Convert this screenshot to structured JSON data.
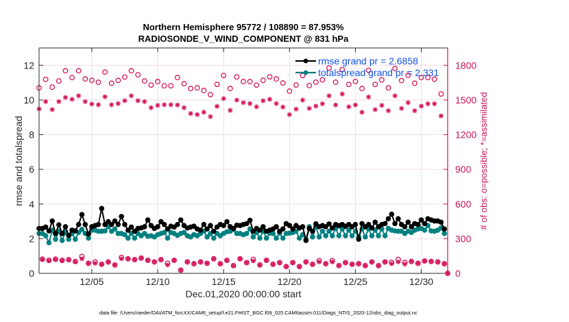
{
  "chart_data": {
    "type": "line",
    "title": [
      "Northern Hemisphere 95772 / 108890 = 87.953%",
      "RADIOSONDE_V_WIND_COMPONENT @ 831 hPa"
    ],
    "xlabel": "Dec.01,2020 00:00:00 start",
    "ylabel_left": "rmse and totalspread",
    "ylabel_right": "# of obs: o=possible; *=assimilated",
    "footer": "data file: /Users/raeder/DAI/ATM_forcXX/CAM6_setup/f.e21.FHIST_BGC.f09_025.CAM6assim.011/Diags_NTrS_2020-12/obs_diag_output.nc",
    "x_units": "days since 2020-12-01 00:00:00",
    "xlim": [
      0,
      31
    ],
    "xtick_days": [
      4,
      9,
      14,
      19,
      24,
      29
    ],
    "xtick_labels": [
      "12/05",
      "12/10",
      "12/15",
      "12/20",
      "12/25",
      "12/30"
    ],
    "ylim_left": [
      0,
      13
    ],
    "yticks_left": [
      0,
      2,
      4,
      6,
      8,
      10,
      12
    ],
    "ylim_right": [
      0,
      1950
    ],
    "yticks_right": [
      0,
      300,
      600,
      900,
      1200,
      1500,
      1800
    ],
    "grid": true,
    "legend": {
      "placement": "top-right",
      "entries": [
        {
          "series": "rmse",
          "label": "rmse grand pr = 2.6858"
        },
        {
          "series": "totalspread",
          "label": "totalspread grand pr = 2.331"
        }
      ]
    },
    "colors": {
      "rmse": "#000000",
      "totalspread": "#008080",
      "obs": "#d4145a",
      "legend_text": "#1250e6",
      "right_axis": "#c8105a"
    },
    "series": [
      {
        "name": "rmse",
        "axis": "left",
        "x_start_day": 0,
        "x_step_days": 0.25,
        "values": [
          2.59,
          2.59,
          2.67,
          2.45,
          3.02,
          2.3,
          2.8,
          2.3,
          2.69,
          2.19,
          2.49,
          2.45,
          2.82,
          3.39,
          2.82,
          2.27,
          2.69,
          2.76,
          2.82,
          3.74,
          2.82,
          2.98,
          2.82,
          3.02,
          2.82,
          3.28,
          2.82,
          2.49,
          2.67,
          2.43,
          2.59,
          2.62,
          2.69,
          3.08,
          2.76,
          2.59,
          2.69,
          2.98,
          2.82,
          2.56,
          2.72,
          2.67,
          2.82,
          3.08,
          2.76,
          2.62,
          2.67,
          2.72,
          2.56,
          2.49,
          2.82,
          2.56,
          2.76,
          2.43,
          2.67,
          2.82,
          2.76,
          2.98,
          2.69,
          2.59,
          2.78,
          2.76,
          2.82,
          2.87,
          3.06,
          2.43,
          2.59,
          2.49,
          2.69,
          2.43,
          2.49,
          2.56,
          2.69,
          2.43,
          2.56,
          2.87,
          2.76,
          2.56,
          2.76,
          2.62,
          2.69,
          1.9,
          2.59,
          2.43,
          2.86,
          2.69,
          2.76,
          2.69,
          2.85,
          2.62,
          2.82,
          2.76,
          2.82,
          2.72,
          2.82,
          2.69,
          2.82,
          1.97,
          2.87,
          2.69,
          2.82,
          2.62,
          2.95,
          2.69,
          2.82,
          2.87,
          3.15,
          3.41,
          2.87,
          3.15,
          2.82,
          2.69,
          2.95,
          2.69,
          2.87,
          2.82,
          3.08,
          2.87,
          3.15,
          3.08,
          3.02,
          3.02,
          2.95,
          2.56
        ]
      },
      {
        "name": "totalspread",
        "axis": "left",
        "x_start_day": 0,
        "x_step_days": 0.25,
        "values": [
          2.3,
          2.3,
          2.17,
          1.77,
          2.49,
          1.97,
          2.43,
          1.9,
          2.36,
          1.97,
          2.3,
          1.97,
          2.36,
          2.53,
          2.3,
          2.03,
          2.49,
          2.49,
          2.43,
          2.43,
          2.45,
          2.69,
          2.43,
          2.56,
          2.3,
          2.3,
          2.23,
          2.03,
          2.3,
          2.03,
          2.3,
          2.17,
          2.3,
          2.14,
          2.17,
          2.1,
          2.23,
          2.3,
          2.36,
          2.03,
          2.36,
          2.3,
          2.19,
          2.3,
          2.36,
          2.17,
          2.1,
          2.23,
          2.17,
          2.3,
          2.43,
          2.1,
          2.3,
          2.03,
          2.3,
          2.17,
          2.3,
          2.4,
          2.43,
          2.53,
          2.3,
          2.3,
          2.23,
          2.3,
          2.56,
          2.1,
          2.36,
          2.03,
          2.43,
          2.03,
          2.32,
          2.3,
          2.03,
          2.32,
          2.03,
          2.3,
          2.32,
          2.36,
          2.43,
          2.03,
          2.23,
          1.97,
          2.69,
          2.1,
          2.69,
          2.1,
          2.43,
          2.17,
          2.43,
          2.17,
          2.59,
          2.17,
          2.56,
          2.17,
          2.49,
          2.17,
          2.43,
          2.1,
          2.56,
          2.1,
          2.56,
          2.17,
          2.49,
          2.17,
          2.56,
          2.17,
          2.59,
          2.49,
          2.45,
          2.43,
          2.43,
          2.3,
          2.43,
          2.36,
          2.49,
          2.56,
          2.59,
          2.49,
          2.76,
          2.45,
          2.43,
          2.49,
          2.62,
          2.3
        ]
      },
      {
        "name": "obs_possible",
        "axis": "right",
        "marker": "o",
        "x_start_day": 0,
        "x_step_days": 0.25,
        "values": [
          1605,
          123,
          1678,
          113,
          1611,
          123,
          1664,
          113,
          1753,
          119,
          1694,
          103,
          1753,
          146,
          1682,
          87,
          1670,
          99,
          1653,
          79,
          1741,
          99,
          1645,
          73,
          1670,
          138,
          1698,
          126,
          1753,
          119,
          1718,
          132,
          1664,
          113,
          1629,
          99,
          1659,
          119,
          1623,
          87,
          1623,
          113,
          1694,
          28,
          1641,
          99,
          1599,
          83,
          1605,
          99,
          1582,
          87,
          1546,
          126,
          1635,
          83,
          1712,
          113,
          1599,
          67,
          1700,
          126,
          1659,
          93,
          1659,
          121,
          1629,
          73,
          1670,
          113,
          1700,
          79,
          1682,
          93,
          1647,
          59,
          1576,
          93,
          1629,
          59,
          1712,
          99,
          1625,
          79,
          1654,
          110,
          1674,
          83,
          1777,
          110,
          1654,
          67,
          1763,
          93,
          1635,
          79,
          1660,
          83,
          1599,
          67,
          1757,
          99,
          1635,
          67,
          1674,
          99,
          1605,
          95,
          1773,
          121,
          1668,
          95,
          1714,
          103,
          1645,
          87,
          1694,
          107,
          1694,
          103,
          1680,
          99,
          1552,
          83,
          0
        ]
      },
      {
        "name": "obs_assimilated",
        "axis": "right",
        "marker": "*",
        "x_start_day": 0,
        "x_step_days": 0.25,
        "values": [
          1423,
          120,
          1486,
          110,
          1417,
          120,
          1486,
          110,
          1522,
          116,
          1506,
          100,
          1536,
          126,
          1486,
          87,
          1465,
          87,
          1459,
          79,
          1528,
          99,
          1459,
          73,
          1469,
          126,
          1494,
          126,
          1536,
          119,
          1494,
          132,
          1486,
          113,
          1433,
          99,
          1453,
          119,
          1459,
          73,
          1459,
          113,
          1457,
          28,
          1433,
          99,
          1383,
          83,
          1374,
          99,
          1394,
          87,
          1356,
          126,
          1445,
          83,
          1512,
          113,
          1410,
          67,
          1499,
          126,
          1477,
          93,
          1469,
          107,
          1441,
          73,
          1493,
          113,
          1506,
          79,
          1469,
          93,
          1439,
          59,
          1374,
          93,
          1421,
          59,
          1499,
          99,
          1427,
          79,
          1447,
          99,
          1467,
          83,
          1536,
          99,
          1457,
          67,
          1552,
          93,
          1441,
          79,
          1457,
          83,
          1394,
          67,
          1526,
          99,
          1417,
          67,
          1453,
          99,
          1407,
          83,
          1536,
          99,
          1427,
          80,
          1477,
          103,
          1407,
          87,
          1447,
          107,
          1467,
          103,
          1467,
          99,
          1362,
          83,
          0
        ]
      }
    ]
  }
}
